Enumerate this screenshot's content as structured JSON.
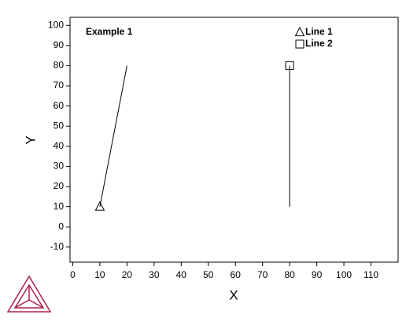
{
  "chart_data": {
    "type": "line",
    "title": "Example 1",
    "xlabel": "X",
    "ylabel": "Y",
    "series": [
      {
        "name": "Line 1",
        "color": "#000000",
        "marker": "triangle",
        "x": [
          10,
          20
        ],
        "values": [
          10,
          80
        ]
      },
      {
        "name": "Line 2",
        "color": "#000000",
        "marker": "square",
        "x": [
          80,
          80
        ],
        "values": [
          80,
          10
        ]
      }
    ],
    "xlim": [
      -1,
      120
    ],
    "ylim": [
      -17.5,
      104
    ],
    "xticks": [
      0,
      10,
      20,
      30,
      40,
      50,
      60,
      70,
      80,
      90,
      100,
      110
    ],
    "yticks": [
      -10,
      0,
      10,
      20,
      30,
      40,
      50,
      60,
      70,
      80,
      90,
      100
    ],
    "grid": false,
    "legend": "upper right"
  }
}
